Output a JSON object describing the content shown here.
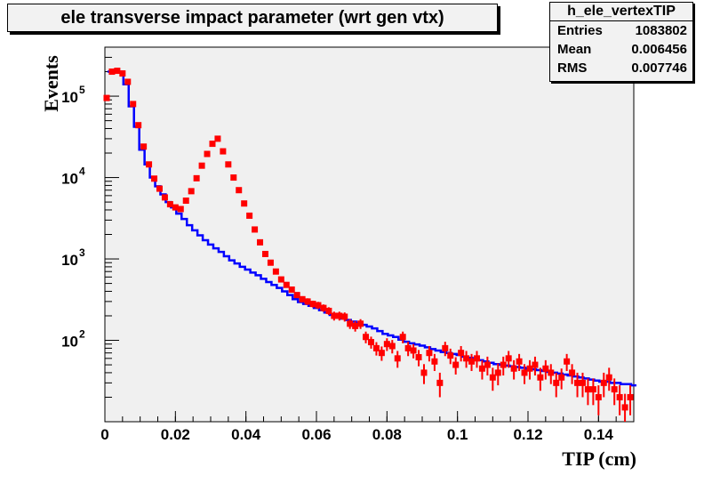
{
  "chart_data": {
    "type": "line",
    "title": "ele transverse impact parameter (wrt gen vtx)",
    "xlabel": "TIP (cm)",
    "ylabel": "Events",
    "xlim": [
      0,
      0.15
    ],
    "ylim": [
      10,
      400000
    ],
    "y_scale": "log",
    "grid": false,
    "x_ticks": [
      "0",
      "0.02",
      "0.04",
      "0.06",
      "0.08",
      "0.1",
      "0.12",
      "0.14"
    ],
    "y_ticks": [
      {
        "base": "10",
        "exp": "2"
      },
      {
        "base": "10",
        "exp": "3"
      },
      {
        "base": "10",
        "exp": "4"
      },
      {
        "base": "10",
        "exp": "5"
      }
    ],
    "stats": {
      "name": "h_ele_vertexTIP",
      "rows": [
        {
          "label": "Entries",
          "value": "1083802"
        },
        {
          "label": "Mean",
          "value": "0.006456"
        },
        {
          "label": "RMS",
          "value": "0.007746"
        }
      ]
    },
    "series": [
      {
        "color": "#0000ff",
        "style": "step",
        "x": [
          0.0015,
          0.003,
          0.0045,
          0.006,
          0.0075,
          0.009,
          0.0105,
          0.012,
          0.0135,
          0.015,
          0.0165,
          0.018,
          0.0195,
          0.021,
          0.0225,
          0.024,
          0.0255,
          0.027,
          0.0285,
          0.03,
          0.0315,
          0.033,
          0.0345,
          0.036,
          0.0375,
          0.039,
          0.0405,
          0.042,
          0.0435,
          0.045,
          0.0465,
          0.048,
          0.0495,
          0.051,
          0.0525,
          0.054,
          0.0555,
          0.057,
          0.0585,
          0.06,
          0.0615,
          0.063,
          0.0645,
          0.066,
          0.0675,
          0.069,
          0.0705,
          0.072,
          0.0735,
          0.075,
          0.0765,
          0.078,
          0.0795,
          0.081,
          0.0825,
          0.084,
          0.0855,
          0.087,
          0.0885,
          0.09,
          0.0915,
          0.093,
          0.0945,
          0.096,
          0.0975,
          0.099,
          0.1005,
          0.102,
          0.1035,
          0.105,
          0.1065,
          0.108,
          0.1095,
          0.111,
          0.1125,
          0.114,
          0.1155,
          0.117,
          0.1185,
          0.12,
          0.1215,
          0.123,
          0.1245,
          0.126,
          0.1275,
          0.129,
          0.1305,
          0.132,
          0.1335,
          0.135,
          0.1365,
          0.138,
          0.1395,
          0.141,
          0.1425,
          0.144,
          0.1455,
          0.147,
          0.1485,
          0.15
        ],
        "values": [
          200000,
          210000,
          200000,
          140000,
          75000,
          42000,
          22000,
          14500,
          10000,
          7800,
          6200,
          5000,
          4300,
          3600,
          3100,
          2600,
          2250,
          1950,
          1700,
          1500,
          1350,
          1220,
          1080,
          960,
          880,
          800,
          740,
          680,
          630,
          570,
          520,
          480,
          440,
          400,
          360,
          320,
          295,
          280,
          265,
          250,
          235,
          220,
          205,
          195,
          185,
          178,
          170,
          162,
          155,
          148,
          140,
          130,
          120,
          115,
          110,
          102,
          96,
          92,
          89,
          86,
          82,
          78,
          75,
          72,
          70,
          68,
          66,
          63,
          61,
          59,
          57,
          55,
          53,
          51,
          50,
          49,
          48,
          47,
          46,
          45,
          44,
          43,
          42,
          41,
          40,
          39,
          38,
          37,
          36,
          35,
          34,
          33,
          32,
          31,
          31,
          30,
          30,
          29,
          29,
          28
        ]
      },
      {
        "color": "#ff0000",
        "style": "markers",
        "x": [
          0.0005,
          0.002,
          0.0035,
          0.005,
          0.0065,
          0.008,
          0.0095,
          0.011,
          0.0125,
          0.014,
          0.0155,
          0.017,
          0.0185,
          0.02,
          0.0215,
          0.023,
          0.0245,
          0.026,
          0.0275,
          0.029,
          0.0305,
          0.032,
          0.0335,
          0.035,
          0.0365,
          0.038,
          0.0395,
          0.041,
          0.0425,
          0.044,
          0.0455,
          0.047,
          0.0485,
          0.05,
          0.0515,
          0.053,
          0.0545,
          0.056,
          0.0575,
          0.059,
          0.0605,
          0.062,
          0.0635,
          0.065,
          0.0665,
          0.068,
          0.0695,
          0.071,
          0.0725,
          0.074,
          0.0755,
          0.077,
          0.0785,
          0.08,
          0.0815,
          0.083,
          0.0845,
          0.086,
          0.0875,
          0.089,
          0.0905,
          0.092,
          0.0935,
          0.095,
          0.0965,
          0.098,
          0.0995,
          0.101,
          0.1025,
          0.104,
          0.1055,
          0.107,
          0.1085,
          0.11,
          0.1115,
          0.113,
          0.1145,
          0.116,
          0.1175,
          0.119,
          0.1205,
          0.122,
          0.1235,
          0.125,
          0.1265,
          0.128,
          0.1295,
          0.131,
          0.1325,
          0.134,
          0.1355,
          0.137,
          0.1385,
          0.14,
          0.1415,
          0.143,
          0.1445,
          0.146,
          0.1475,
          0.149
        ],
        "values": [
          95000,
          200000,
          205000,
          190000,
          150000,
          80000,
          44000,
          24000,
          14500,
          9700,
          7300,
          5700,
          4700,
          4300,
          4100,
          5200,
          6800,
          9800,
          14000,
          19500,
          26000,
          30000,
          21000,
          14500,
          10000,
          7000,
          4800,
          3400,
          2300,
          1600,
          1150,
          900,
          700,
          560,
          480,
          420,
          360,
          320,
          300,
          280,
          270,
          250,
          230,
          200,
          200,
          195,
          160,
          150,
          160,
          110,
          95,
          80,
          70,
          90,
          85,
          60,
          110,
          80,
          75,
          62,
          40,
          70,
          55,
          30,
          80,
          65,
          50,
          70,
          60,
          55,
          60,
          45,
          50,
          35,
          40,
          50,
          60,
          45,
          55,
          40,
          45,
          50,
          35,
          45,
          40,
          30,
          35,
          55,
          40,
          30,
          30,
          25,
          25,
          20,
          30,
          35,
          25,
          20,
          15,
          20
        ],
        "errors": [
          0,
          0,
          0,
          0,
          0,
          0,
          0,
          0,
          0,
          0,
          0,
          0,
          0,
          0,
          0,
          0,
          0,
          0,
          0,
          0,
          0,
          0,
          0,
          0,
          0,
          0,
          0,
          0,
          0,
          0,
          0,
          0,
          0,
          40,
          35,
          30,
          30,
          28,
          28,
          27,
          27,
          26,
          25,
          25,
          25,
          25,
          22,
          22,
          22,
          18,
          16,
          15,
          14,
          16,
          16,
          14,
          18,
          16,
          15,
          14,
          11,
          15,
          13,
          10,
          16,
          14,
          12,
          15,
          14,
          13,
          14,
          12,
          13,
          11,
          12,
          13,
          14,
          12,
          13,
          11,
          12,
          13,
          11,
          12,
          11,
          10,
          10,
          13,
          11,
          10,
          10,
          9,
          9,
          8,
          10,
          11,
          9,
          8,
          7,
          8
        ]
      }
    ]
  }
}
